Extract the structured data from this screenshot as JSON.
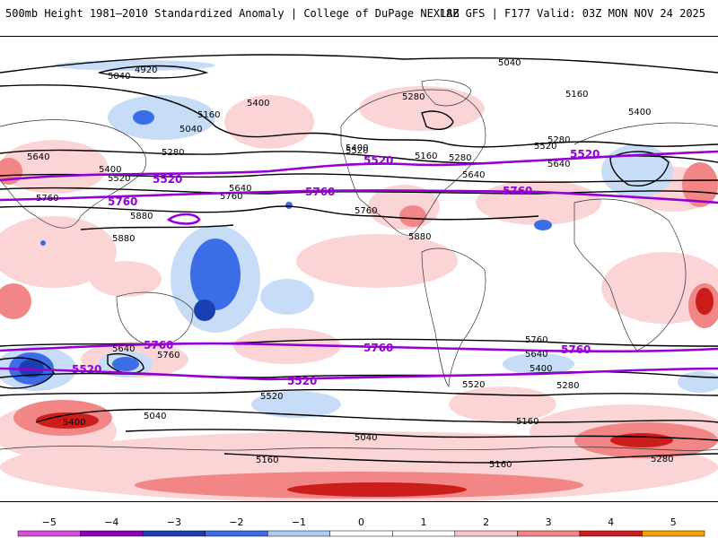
{
  "header": {
    "title_left": "500mb Height 1981–2010 Standardized Anomaly | College of DuPage NEXLAB",
    "title_right": "18Z GFS | F177 Valid: 03Z MON NOV 24 2025"
  },
  "map": {
    "black_contour_labels": [
      "4920",
      "5040",
      "5040",
      "5160",
      "5160",
      "5280",
      "5280",
      "5400",
      "5400",
      "5520",
      "5520",
      "5640",
      "5640",
      "5640",
      "5760",
      "5760",
      "5760",
      "5880",
      "5880",
      "5280",
      "5400",
      "5520",
      "5640",
      "5040",
      "5160",
      "5280",
      "5400",
      "5520",
      "5160",
      "5280",
      "5400",
      "5520",
      "5640",
      "5760",
      "5040",
      "5160",
      "5160",
      "5280",
      "5400",
      "5640",
      "5760",
      "5880",
      "5040"
    ],
    "purple_contour_labels": [
      "5520",
      "5520",
      "5520",
      "5760",
      "5760",
      "5760",
      "5760",
      "5520",
      "5520",
      "5760",
      "5760"
    ],
    "purple_color": "#9400d3",
    "contour_color": "#000000"
  },
  "colorbar": {
    "ticks": [
      "−5",
      "−4",
      "−3",
      "−2",
      "−1",
      "0",
      "1",
      "2",
      "3",
      "4",
      "5"
    ],
    "colors": [
      "#d94fd9",
      "#8a00b8",
      "#1a3fb0",
      "#3b6ee6",
      "#a9cdf5",
      "#ffffff",
      "#ffffff",
      "#f9c4c4",
      "#f28585",
      "#cc1d1d",
      "#f2a400"
    ]
  }
}
